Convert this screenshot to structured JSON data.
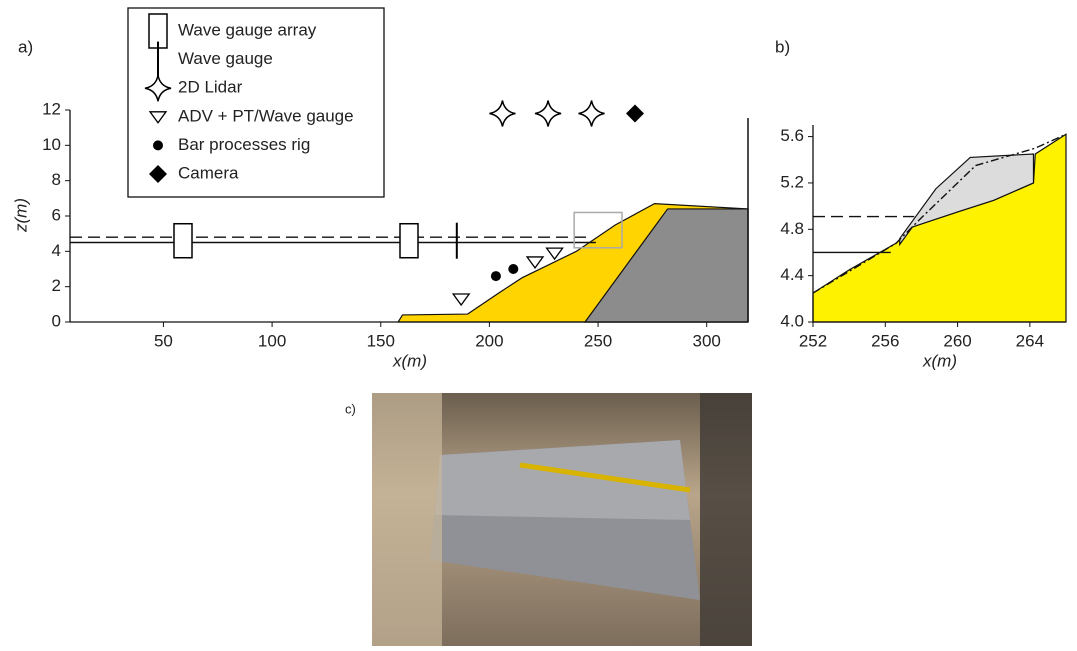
{
  "chart_data": [
    {
      "type": "profile",
      "panel_label": "a)",
      "xlabel": "x(m)",
      "ylabel": "z(m)",
      "xlim": [
        7,
        319
      ],
      "ylim": [
        0,
        12
      ],
      "xticks": [
        50,
        100,
        150,
        200,
        250,
        300
      ],
      "yticks": [
        0,
        2,
        4,
        6,
        8,
        10,
        12
      ],
      "areas": [
        {
          "color": "#ffd400",
          "x": [
            158,
            160,
            190,
            205,
            215,
            240,
            258,
            276,
            319
          ],
          "y": [
            0,
            0.4,
            0.45,
            1.7,
            2.5,
            4.0,
            5.5,
            6.7,
            6.4
          ]
        },
        {
          "color": "#8c8c8c",
          "x": [
            244,
            282,
            319,
            319
          ],
          "y": [
            0,
            6.4,
            6.4,
            0
          ]
        }
      ],
      "hlines": [
        {
          "style": "dashed",
          "y": 4.8,
          "x": [
            7,
            247
          ]
        },
        {
          "style": "solid",
          "y": 4.5,
          "x": [
            7,
            249
          ]
        }
      ],
      "inset": {
        "color": "#aaaaaa",
        "x": [
          239,
          261
        ],
        "y": [
          4.2,
          6.2
        ]
      },
      "series": [
        {
          "name": "Wave gauge array",
          "marker": "rect",
          "color": "#000000",
          "x": [
            59,
            163
          ],
          "values": [
            4.6,
            4.6
          ]
        },
        {
          "name": "Wave gauge",
          "marker": "vline",
          "color": "#000000",
          "x": [
            185
          ],
          "values": [
            4.6
          ]
        },
        {
          "name": "2D Lidar",
          "marker": "star",
          "color": "#000000",
          "x": [
            206,
            227,
            247
          ],
          "values": [
            11.8,
            11.8,
            11.8
          ]
        },
        {
          "name": "ADV + PT/Wave gauge",
          "marker": "triangle",
          "color": "#000000",
          "x": [
            187,
            221,
            230
          ],
          "values": [
            1.3,
            3.4,
            3.9
          ]
        },
        {
          "name": "Bar processes rig",
          "marker": "circle",
          "color": "#000000",
          "x": [
            203,
            211
          ],
          "values": [
            2.6,
            3.0
          ]
        },
        {
          "name": "Camera",
          "marker": "diamond",
          "color": "#000000",
          "x": [
            267
          ],
          "values": [
            11.8
          ]
        }
      ]
    },
    {
      "type": "profile",
      "panel_label": "b)",
      "xlabel": "x(m)",
      "xlim": [
        252,
        266
      ],
      "ylim": [
        4.0,
        5.7
      ],
      "xticks": [
        252,
        256,
        260,
        264
      ],
      "yticks": [
        {
          "value": 4,
          "label": "4.0"
        },
        4.4,
        4.8,
        5.2,
        5.6
      ],
      "areas": [
        {
          "color": "#fff200",
          "x": [
            252,
            254,
            256.6,
            257.5,
            260,
            262,
            264.2,
            264.3,
            266
          ],
          "y": [
            4.25,
            4.45,
            4.68,
            4.82,
            4.95,
            5.05,
            5.2,
            5.45,
            5.62
          ]
        },
        {
          "color": "#dcdcdc",
          "x": [
            256.8,
            258.8,
            260.7,
            264.2,
            264.2,
            262,
            260,
            257.5,
            256.8
          ],
          "y": [
            4.72,
            5.15,
            5.42,
            5.45,
            5.2,
            5.05,
            4.95,
            4.82,
            4.67
          ]
        }
      ],
      "hlines": [
        {
          "style": "dashed",
          "y": 4.91,
          "x": [
            252,
            257.6
          ]
        },
        {
          "style": "solid",
          "y": 4.6,
          "x": [
            252,
            256.3
          ]
        }
      ],
      "lines": [
        {
          "style": "dashdot",
          "x": [
            252,
            256.6,
            258,
            261,
            264.3,
            266
          ],
          "values": [
            4.25,
            4.68,
            4.9,
            5.35,
            5.5,
            5.62
          ]
        }
      ]
    }
  ],
  "photo": {
    "label": "c)"
  }
}
